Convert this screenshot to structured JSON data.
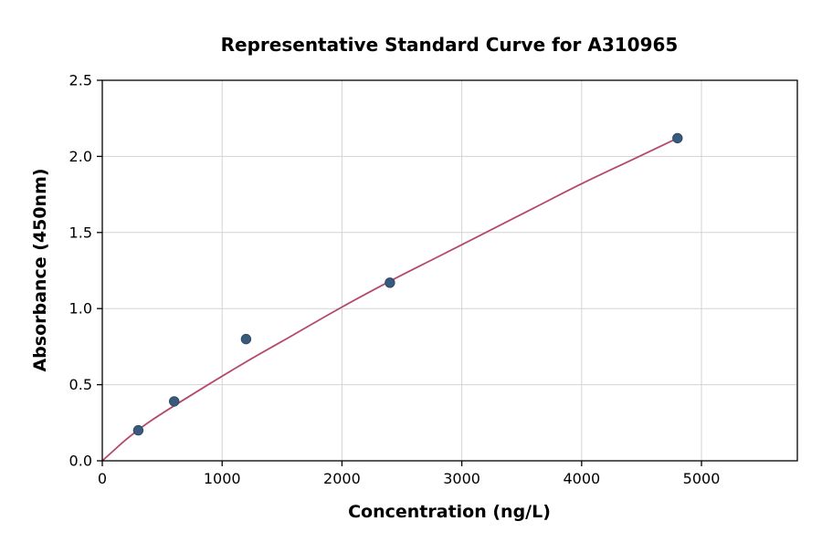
{
  "chart_data": {
    "type": "scatter",
    "title": "Representative Standard Curve for A310965",
    "xlabel": "Concentration (ng/L)",
    "ylabel": "Absorbance (450nm)",
    "xlim": [
      0,
      5800
    ],
    "ylim": [
      0,
      2.5
    ],
    "grid": true,
    "legend": "none",
    "xticks": {
      "values": [
        0,
        1000,
        2000,
        3000,
        4000,
        5000
      ],
      "labels": [
        "0",
        "1000",
        "2000",
        "3000",
        "4000",
        "5000"
      ]
    },
    "yticks": {
      "values": [
        0,
        0.5,
        1.0,
        1.5,
        2.0,
        2.5
      ],
      "labels": [
        "0.0",
        "0.5",
        "1.0",
        "1.5",
        "2.0",
        "2.5"
      ]
    },
    "points": {
      "x": [
        300,
        600,
        1200,
        2400,
        4800
      ],
      "y": [
        0.2,
        0.39,
        0.8,
        1.17,
        2.12
      ]
    },
    "fit_curve": {
      "x": [
        0,
        200,
        400,
        800,
        1200,
        1600,
        2000,
        2400,
        2800,
        3200,
        3600,
        4000,
        4400,
        4800
      ],
      "y": [
        0,
        0.14,
        0.26,
        0.46,
        0.65,
        0.83,
        1.01,
        1.18,
        1.34,
        1.5,
        1.66,
        1.82,
        1.97,
        2.12
      ]
    },
    "colors": {
      "point_fill": "#3a5a7c",
      "point_edge": "#2e4a68",
      "curve": "#b5486d",
      "grid": "#d3d3d3",
      "axis": "#000000",
      "background": "#ffffff"
    }
  }
}
